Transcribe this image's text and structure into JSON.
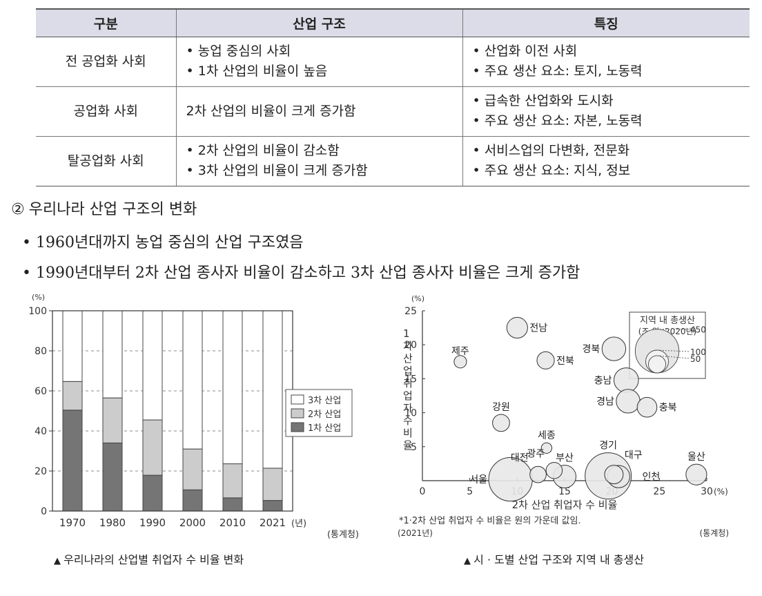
{
  "table": {
    "headers": [
      "구분",
      "산업 구조",
      "특징"
    ],
    "rows": [
      {
        "category": "전 공업화 사회",
        "structure": [
          "농업 중심의 사회",
          "1차 산업의 비율이 높음"
        ],
        "structure_bullets": true,
        "features": [
          "산업화 이전 사회",
          "주요 생산 요소: 토지, 노동력"
        ]
      },
      {
        "category": "공업화 사회",
        "structure": [
          "2차 산업의 비율이 크게 증가함"
        ],
        "structure_bullets": false,
        "features": [
          "급속한 산업화와 도시화",
          "주요 생산 요소: 자본, 노동력"
        ]
      },
      {
        "category": "탈공업화 사회",
        "structure": [
          "2차 산업의 비율이 감소함",
          "3차 산업의 비율이 크게 증가함"
        ],
        "structure_bullets": true,
        "features": [
          "서비스업의 다변화, 전문화",
          "주요 생산 요소: 지식, 정보"
        ]
      }
    ]
  },
  "section": {
    "number": "②",
    "title": "우리나라 산업 구조의 변화",
    "bullets": [
      "1960년대까지 농업 중심의 산업 구조였음",
      "1990년대부터 2차 산업 종사자 비율이 감소하고 3차 산업 종사자 비율은 크게 증가함"
    ]
  },
  "chart_data": [
    {
      "type": "bar",
      "stacked": true,
      "title": "우리나라의 산업별 취업자 수 비율 변화",
      "source": "(통계청)",
      "ylabel": "(%)",
      "xunit": "(년)",
      "ylim": [
        0,
        100
      ],
      "yticks": [
        0,
        20,
        40,
        60,
        80,
        100
      ],
      "grid": "dashed horizontal",
      "legend_position": "right",
      "categories": [
        "1970",
        "1980",
        "1990",
        "2000",
        "2010",
        "2021"
      ],
      "series": [
        {
          "name": "1차 산업",
          "values": [
            50.4,
            34.0,
            17.9,
            10.6,
            6.6,
            5.3
          ],
          "color": "#757575"
        },
        {
          "name": "2차 산업",
          "values": [
            14.3,
            22.5,
            27.6,
            20.4,
            17.0,
            16.1
          ],
          "color": "#cccccc"
        },
        {
          "name": "3차 산업",
          "values": [
            35.3,
            43.5,
            54.5,
            69.0,
            76.4,
            78.6
          ],
          "color": "#ffffff"
        }
      ]
    },
    {
      "type": "scatter",
      "title": "시 · 도별 산업 구조와 지역 내 총생산",
      "note": "*1·2차 산업 취업자 수 비율은 원의 가운데 값임.",
      "year_label": "(2021년)",
      "source": "(통계청)",
      "xlabel": "2차 산업 취업자 수 비율",
      "ylabel": "1차 산업 취업자 수 비율",
      "xunit": "(%)",
      "yunit": "(%)",
      "xlim": [
        0,
        30
      ],
      "ylim": [
        0,
        25
      ],
      "xticks": [
        0,
        5,
        10,
        15,
        20,
        25,
        30
      ],
      "yticks": [
        5,
        10,
        15,
        20,
        25
      ],
      "size_legend": {
        "title": "지역 내 총생산",
        "subtitle": "(조 원, 2020년)",
        "values": [
          450,
          100,
          50
        ]
      },
      "points": [
        {
          "name": "전남",
          "x": 10,
          "y": 22.5,
          "size": 80
        },
        {
          "name": "제주",
          "x": 4,
          "y": 17.5,
          "size": 20
        },
        {
          "name": "전북",
          "x": 13,
          "y": 17.7,
          "size": 50
        },
        {
          "name": "경북",
          "x": 20.2,
          "y": 19.4,
          "size": 110
        },
        {
          "name": "충남",
          "x": 21.5,
          "y": 14.8,
          "size": 120
        },
        {
          "name": "경남",
          "x": 21.7,
          "y": 11.7,
          "size": 110
        },
        {
          "name": "충북",
          "x": 23.7,
          "y": 10.8,
          "size": 70
        },
        {
          "name": "강원",
          "x": 8.3,
          "y": 8.5,
          "size": 48
        },
        {
          "name": "세종",
          "x": 13.1,
          "y": 4.8,
          "size": 12
        },
        {
          "name": "광주",
          "x": 13.9,
          "y": 1.5,
          "size": 42
        },
        {
          "name": "대전",
          "x": 12.2,
          "y": 0.9,
          "size": 43
        },
        {
          "name": "부산",
          "x": 15.0,
          "y": 0.6,
          "size": 100
        },
        {
          "name": "서울",
          "x": 9.3,
          "y": 0.2,
          "size": 450
        },
        {
          "name": "경기",
          "x": 19.6,
          "y": 0.7,
          "size": 510
        },
        {
          "name": "대구",
          "x": 20.2,
          "y": 0.9,
          "size": 60
        },
        {
          "name": "인천",
          "x": 20.7,
          "y": 0.6,
          "size": 95
        },
        {
          "name": "울산",
          "x": 28.9,
          "y": 0.9,
          "size": 80
        }
      ]
    }
  ]
}
